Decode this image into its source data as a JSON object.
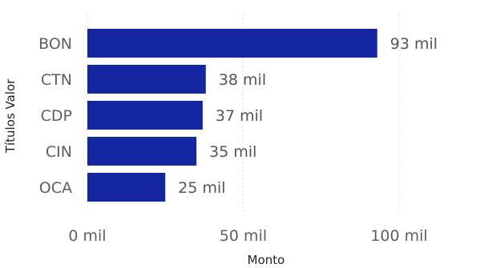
{
  "chart_data": {
    "type": "bar",
    "orientation": "horizontal",
    "categories": [
      "BON",
      "CTN",
      "CDP",
      "CIN",
      "OCA"
    ],
    "values": [
      93,
      38,
      37,
      35,
      25
    ],
    "data_labels": [
      "93 mil",
      "38 mil",
      "37 mil",
      "35 mil",
      "25 mil"
    ],
    "xlabel": "Monto",
    "ylabel": "Títulos Valor",
    "xlim": [
      0,
      100
    ],
    "x_ticks": [
      0,
      50,
      100
    ],
    "x_tick_labels": [
      "0 mil",
      "50 mil",
      "100 mil"
    ],
    "grid": "vertical-dotted",
    "bar_color": "#1427a0"
  }
}
